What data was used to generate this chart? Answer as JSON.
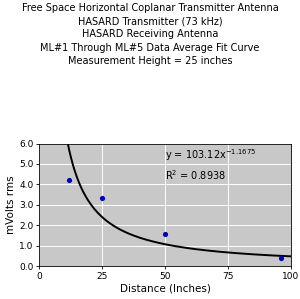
{
  "title_lines": [
    "Free Space Horizontal Coplanar Transmitter Antenna",
    "HASARD Transmitter (73 kHz)",
    "HASARD Receiving Antenna",
    "ML#1 Through ML#5 Data Average Fit Curve",
    "Measurement Height = 25 inches"
  ],
  "xlabel": "Distance (Inches)",
  "ylabel": "mVolts rms",
  "xlim": [
    0,
    100
  ],
  "ylim": [
    0.0,
    6.0
  ],
  "xticks": [
    0,
    25,
    50,
    75,
    100
  ],
  "yticks": [
    0.0,
    1.0,
    2.0,
    3.0,
    4.0,
    5.0,
    6.0
  ],
  "scatter_x": [
    12,
    25,
    50,
    96
  ],
  "scatter_y": [
    4.2,
    3.35,
    1.58,
    0.38
  ],
  "scatter_color": "#0000bb",
  "scatter_size": 14,
  "fit_a": 103.12,
  "fit_b": -1.1675,
  "curve_color": "#000000",
  "curve_linewidth": 1.4,
  "bg_color": "#c8c8c8",
  "title_fontsize": 7.0,
  "axis_label_fontsize": 7.5,
  "tick_fontsize": 6.5,
  "annotation_fontsize": 7.0,
  "grid_color": "#ffffff",
  "grid_linewidth": 0.7,
  "fig_bg": "#ffffff"
}
